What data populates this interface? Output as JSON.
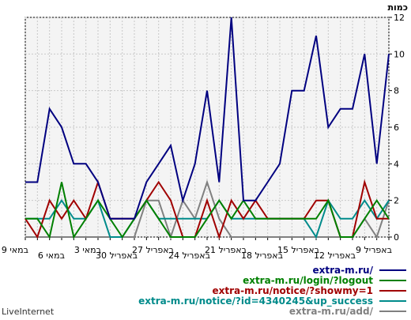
{
  "chart_data": {
    "type": "line",
    "ylabel": "כמות",
    "ylim": [
      0,
      12
    ],
    "yticks": [
      0,
      2,
      4,
      6,
      8,
      10,
      12
    ],
    "x_tick_labels": [
      {
        "i": 0,
        "label": "9 באפריל"
      },
      {
        "i": 3,
        "label": "12 באפריל"
      },
      {
        "i": 6,
        "label": "15 באפריל"
      },
      {
        "i": 9,
        "label": "18 באפריל"
      },
      {
        "i": 12,
        "label": "21 באפריל"
      },
      {
        "i": 15,
        "label": "24 באפריל"
      },
      {
        "i": 18,
        "label": "27 באפריל"
      },
      {
        "i": 21,
        "label": "30 באפריל"
      },
      {
        "i": 24,
        "label": "3 במאי"
      },
      {
        "i": 27,
        "label": "6 במאי"
      },
      {
        "i": 30,
        "label": "9 במאי"
      }
    ],
    "x_order": "right-to-left",
    "grid": true,
    "series": [
      {
        "name": "extra-m.ru/",
        "color": "#000080",
        "values": [
          10,
          4,
          10,
          7,
          7,
          6,
          11,
          8,
          8,
          4,
          3,
          2,
          2,
          12,
          3,
          8,
          4,
          2,
          5,
          4,
          3,
          1,
          1,
          1,
          3,
          4,
          4,
          6,
          7,
          3,
          3
        ]
      },
      {
        "name": "extra-m.ru/login/?logout",
        "color": "#008000",
        "values": [
          1,
          2,
          1,
          0,
          0,
          2,
          1,
          1,
          1,
          1,
          1,
          1,
          2,
          1,
          2,
          1,
          0,
          0,
          0,
          1,
          2,
          1,
          0,
          1,
          2,
          1,
          0,
          3,
          0,
          1,
          1
        ]
      },
      {
        "name": "extra-m.ru/notice/?showmy=1",
        "color": "#a00000",
        "values": [
          1,
          1,
          3,
          0,
          0,
          2,
          2,
          1,
          1,
          1,
          1,
          2,
          1,
          2,
          0,
          2,
          0,
          0,
          2,
          3,
          2,
          1,
          1,
          1,
          3,
          1,
          2,
          1,
          2,
          0,
          1
        ]
      },
      {
        "name": "extra-m.ru/notice/?id=4340245&up_success",
        "color": "#008b8b",
        "values": [
          2,
          1,
          2,
          1,
          1,
          2,
          0,
          1,
          1,
          1,
          1,
          1,
          1,
          1,
          2,
          1,
          1,
          1,
          1,
          1,
          2,
          1,
          0,
          0,
          2,
          1,
          1,
          2,
          1,
          1,
          1
        ]
      },
      {
        "name": "extra-m.ru/add/",
        "color": "#808080",
        "values": [
          2,
          0,
          1,
          0,
          0,
          0,
          0,
          0,
          0,
          0,
          0,
          0,
          0,
          0,
          1,
          3,
          1,
          2,
          0,
          2,
          2,
          0,
          0,
          0,
          0,
          0,
          0,
          0,
          0,
          0,
          0
        ]
      }
    ]
  },
  "footer": {
    "credit": "LiveInternet"
  }
}
